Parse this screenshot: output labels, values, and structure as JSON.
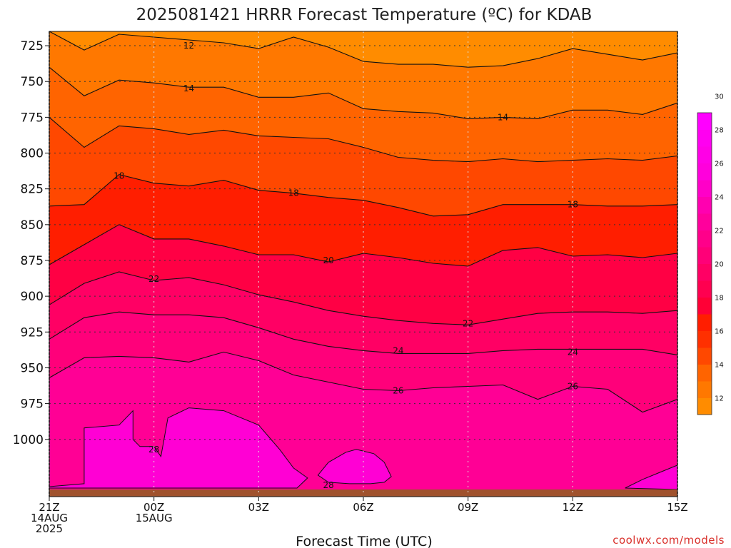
{
  "title": "2025081421 HRRR Forecast Temperature (ºC) for KDAB",
  "watermark": "coolwx.com/models",
  "chart_data": {
    "type": "heatmap",
    "title": "2025081421 HRRR Forecast Temperature (ºC) for KDAB",
    "xlabel": "Forecast Time (UTC)",
    "ylabel": "",
    "x_hours": [
      0,
      1,
      2,
      3,
      4,
      5,
      6,
      7,
      8,
      9,
      10,
      11,
      12,
      13,
      14,
      15,
      16,
      17,
      18
    ],
    "xlim": [
      0,
      18
    ],
    "ylim": [
      1040,
      715
    ],
    "y_ticks": [
      725,
      750,
      775,
      800,
      825,
      850,
      875,
      900,
      925,
      950,
      975,
      1000
    ],
    "x_ticks": [
      {
        "hour": 0,
        "lines": [
          "21Z",
          "14AUG",
          "2025"
        ]
      },
      {
        "hour": 3,
        "lines": [
          "00Z",
          "15AUG"
        ]
      },
      {
        "hour": 6,
        "lines": [
          "03Z"
        ]
      },
      {
        "hour": 9,
        "lines": [
          "06Z"
        ]
      },
      {
        "hour": 12,
        "lines": [
          "09Z"
        ]
      },
      {
        "hour": 15,
        "lines": [
          "12Z"
        ]
      },
      {
        "hour": 18,
        "lines": [
          "15Z"
        ]
      }
    ],
    "grid": true,
    "ground_pressure": 1035,
    "contour_levels": [
      12,
      14,
      16,
      18,
      20,
      22,
      24,
      26,
      28
    ],
    "contours": [
      {
        "level": 12,
        "p": [
          715,
          728,
          717,
          719,
          721,
          723,
          727,
          719,
          726,
          736,
          738,
          738,
          740,
          739,
          734,
          727,
          731,
          735,
          730
        ]
      },
      {
        "level": 14,
        "p": [
          740,
          760,
          749,
          751,
          754,
          754,
          761,
          761,
          758,
          769,
          771,
          772,
          776,
          775,
          776,
          770,
          770,
          773,
          765
        ]
      },
      {
        "level": 16,
        "p": [
          775,
          796,
          781,
          783,
          787,
          784,
          788,
          789,
          790,
          796,
          803,
          805,
          806,
          804,
          806,
          805,
          804,
          805,
          802
        ]
      },
      {
        "level": 18,
        "p": [
          837,
          836,
          815,
          821,
          823,
          819,
          826,
          828,
          831,
          833,
          838,
          844,
          843,
          836,
          836,
          836,
          837,
          837,
          836
        ]
      },
      {
        "level": 20,
        "p": [
          878,
          864,
          850,
          860,
          860,
          865,
          871,
          871,
          876,
          870,
          873,
          877,
          879,
          868,
          866,
          872,
          871,
          873,
          870
        ]
      },
      {
        "level": 22,
        "p": [
          906,
          891,
          883,
          889,
          887,
          892,
          899,
          904,
          910,
          914,
          917,
          919,
          920,
          916,
          912,
          911,
          911,
          912,
          910
        ]
      },
      {
        "level": 24,
        "p": [
          930,
          915,
          911,
          913,
          913,
          915,
          922,
          930,
          935,
          938,
          940,
          940,
          940,
          938,
          937,
          937,
          937,
          937,
          941
        ]
      },
      {
        "level": 26,
        "p": [
          957,
          943,
          942,
          943,
          946,
          939,
          945,
          955,
          960,
          965,
          966,
          964,
          963,
          962,
          972,
          963,
          965,
          981,
          972
        ]
      }
    ],
    "contour_28_regions": [
      {
        "label": "28",
        "hours": [
          0,
          1,
          1,
          2,
          2.4,
          2.4,
          2.4,
          2.6,
          3,
          3.2,
          3.4,
          4,
          5,
          6,
          6.6,
          7,
          7.4,
          7.1,
          6.5,
          4,
          2.8,
          2,
          1,
          0
        ],
        "p": [
          1033,
          1031,
          992,
          990,
          980,
          983,
          1000,
          1005,
          1005,
          1012,
          985,
          978,
          980,
          990,
          1007,
          1020,
          1027,
          1034,
          1034,
          1034,
          1034,
          1034,
          1034,
          1034
        ]
      },
      {
        "label": "28",
        "hours": [
          7.7,
          8,
          8.5,
          8.8,
          9.3,
          9.6,
          9.8,
          9.6,
          9.2,
          8.6,
          8.0,
          7.7
        ],
        "p": [
          1025,
          1016,
          1009,
          1007,
          1010,
          1016,
          1026,
          1030,
          1031,
          1031,
          1030,
          1025
        ]
      },
      {
        "label": "",
        "hours": [
          16.5,
          17,
          17.5,
          18,
          18,
          16.5
        ],
        "p": [
          1034,
          1028,
          1023,
          1018,
          1035,
          1034
        ]
      }
    ],
    "contour_labels": [
      {
        "text": "12",
        "hour": 4,
        "p": 725
      },
      {
        "text": "14",
        "hour": 4,
        "p": 755
      },
      {
        "text": "14",
        "hour": 13,
        "p": 775
      },
      {
        "text": "18",
        "hour": 2,
        "p": 816
      },
      {
        "text": "18",
        "hour": 7,
        "p": 828
      },
      {
        "text": "18",
        "hour": 15,
        "p": 836
      },
      {
        "text": "20",
        "hour": 8,
        "p": 875
      },
      {
        "text": "22",
        "hour": 3,
        "p": 888
      },
      {
        "text": "22",
        "hour": 12,
        "p": 919
      },
      {
        "text": "24",
        "hour": 10,
        "p": 938
      },
      {
        "text": "24",
        "hour": 15,
        "p": 939
      },
      {
        "text": "26",
        "hour": 10,
        "p": 966
      },
      {
        "text": "26",
        "hour": 15,
        "p": 963
      },
      {
        "text": "28",
        "hour": 3,
        "p": 1007
      },
      {
        "text": "28",
        "hour": 8,
        "p": 1032
      }
    ],
    "fill_colors": [
      {
        "from": -100,
        "to": 12,
        "color": "#ff8c00"
      },
      {
        "from": 12,
        "to": 14,
        "color": "#ff7800"
      },
      {
        "from": 14,
        "to": 16,
        "color": "#ff6400"
      },
      {
        "from": 16,
        "to": 18,
        "color": "#ff4800"
      },
      {
        "from": 18,
        "to": 20,
        "color": "#ff1e00"
      },
      {
        "from": 20,
        "to": 22,
        "color": "#ff0044"
      },
      {
        "from": 22,
        "to": 24,
        "color": "#ff0064"
      },
      {
        "from": 24,
        "to": 26,
        "color": "#ff007a"
      },
      {
        "from": 26,
        "to": 28,
        "color": "#ff0095"
      },
      {
        "from": 28,
        "to": 100,
        "color": "#ff00d4"
      }
    ],
    "ground_color": "#a0522d",
    "colorbar": {
      "tick_labels": [
        "12",
        "14",
        "16",
        "18",
        "20",
        "22",
        "24",
        "26",
        "28",
        "30"
      ],
      "colors": [
        "#ff8c00",
        "#ff7800",
        "#ff6400",
        "#ff4800",
        "#ff3000",
        "#ff1e00",
        "#ff0036",
        "#ff0050",
        "#ff0064",
        "#ff0078",
        "#ff008a",
        "#ff009c",
        "#ff00b0",
        "#ff00c8",
        "#ff00dc",
        "#ff00e6",
        "#ff00f0",
        "#ff00ff"
      ]
    }
  }
}
